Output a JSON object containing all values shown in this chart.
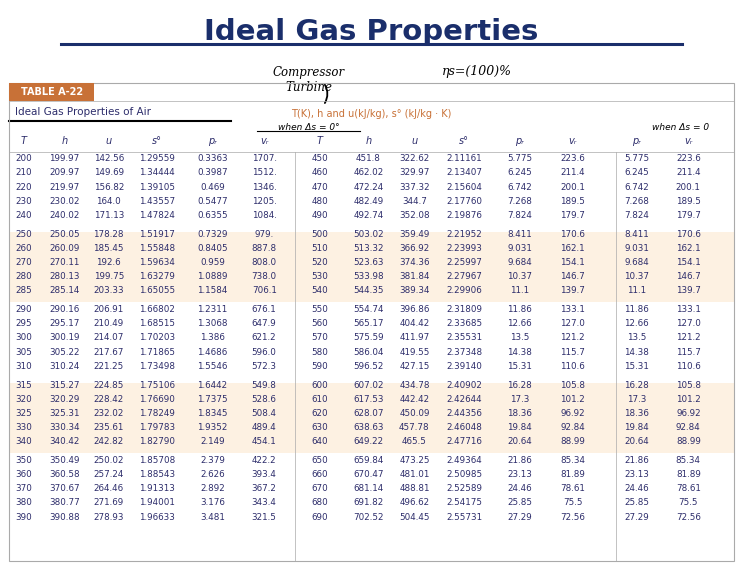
{
  "title": "Ideal Gas Properties",
  "table_label": "TABLE A-22",
  "table_subtitle": "Ideal Gas Properties of Air",
  "col_header_orange": "T(K), h and u(kJ/kg), s° (kJ/kg · K)",
  "col_header_left": "when Δs = 0°",
  "col_header_right": "when Δs = 0",
  "handwritten_left": "Compressor\nTurbine",
  "handwritten_right": "ηs=(100)%",
  "title_color": "#1a2e6b",
  "text_color": "#2d2d6b",
  "header_bg": "#c87137",
  "stripe_color": "#fde8d0",
  "rows": [
    [
      200,
      199.97,
      142.56,
      1.29559,
      0.3363,
      "1707.",
      450,
      451.8,
      322.62,
      2.11161,
      5.775,
      223.6
    ],
    [
      210,
      209.97,
      149.69,
      1.34444,
      0.3987,
      "1512.",
      460,
      462.02,
      329.97,
      2.13407,
      6.245,
      211.4
    ],
    [
      220,
      219.97,
      156.82,
      1.39105,
      0.469,
      "1346.",
      470,
      472.24,
      337.32,
      2.15604,
      6.742,
      200.1
    ],
    [
      230,
      230.02,
      164.0,
      1.43557,
      0.5477,
      "1205.",
      480,
      482.49,
      344.7,
      2.1776,
      7.268,
      189.5
    ],
    [
      240,
      240.02,
      171.13,
      1.47824,
      0.6355,
      "1084.",
      490,
      492.74,
      352.08,
      2.19876,
      7.824,
      179.7
    ],
    [
      null,
      null,
      null,
      null,
      null,
      null,
      null,
      null,
      null,
      null,
      null,
      null
    ],
    [
      250,
      250.05,
      178.28,
      1.51917,
      0.7329,
      "979.",
      500,
      503.02,
      359.49,
      2.21952,
      8.411,
      170.6
    ],
    [
      260,
      260.09,
      185.45,
      1.55848,
      0.8405,
      887.8,
      510,
      513.32,
      366.92,
      2.23993,
      9.031,
      162.1
    ],
    [
      270,
      270.11,
      192.6,
      1.59634,
      0.959,
      808.0,
      520,
      523.63,
      374.36,
      2.25997,
      9.684,
      154.1
    ],
    [
      280,
      280.13,
      199.75,
      1.63279,
      1.0889,
      738.0,
      530,
      533.98,
      381.84,
      2.27967,
      10.37,
      146.7
    ],
    [
      285,
      285.14,
      203.33,
      1.65055,
      1.1584,
      706.1,
      540,
      544.35,
      389.34,
      2.29906,
      11.1,
      139.7
    ],
    [
      null,
      null,
      null,
      null,
      null,
      null,
      null,
      null,
      null,
      null,
      null,
      null
    ],
    [
      290,
      290.16,
      206.91,
      1.66802,
      1.2311,
      676.1,
      550,
      554.74,
      396.86,
      2.31809,
      11.86,
      133.1
    ],
    [
      295,
      295.17,
      210.49,
      1.68515,
      1.3068,
      647.9,
      560,
      565.17,
      404.42,
      2.33685,
      12.66,
      127.0
    ],
    [
      300,
      300.19,
      214.07,
      1.70203,
      1.386,
      621.2,
      570,
      575.59,
      411.97,
      2.35531,
      13.5,
      121.2
    ],
    [
      305,
      305.22,
      217.67,
      1.71865,
      1.4686,
      596.0,
      580,
      586.04,
      419.55,
      2.37348,
      14.38,
      115.7
    ],
    [
      310,
      310.24,
      221.25,
      1.73498,
      1.5546,
      572.3,
      590,
      596.52,
      427.15,
      2.3914,
      15.31,
      110.6
    ],
    [
      null,
      null,
      null,
      null,
      null,
      null,
      null,
      null,
      null,
      null,
      null,
      null
    ],
    [
      315,
      315.27,
      224.85,
      1.75106,
      1.6442,
      549.8,
      600,
      607.02,
      434.78,
      2.40902,
      16.28,
      105.8
    ],
    [
      320,
      320.29,
      228.42,
      1.7669,
      1.7375,
      528.6,
      610,
      617.53,
      442.42,
      2.42644,
      17.3,
      101.2
    ],
    [
      325,
      325.31,
      232.02,
      1.78249,
      1.8345,
      508.4,
      620,
      628.07,
      450.09,
      2.44356,
      18.36,
      96.92
    ],
    [
      330,
      330.34,
      235.61,
      1.79783,
      1.9352,
      489.4,
      630,
      638.63,
      457.78,
      2.46048,
      19.84,
      92.84
    ],
    [
      340,
      340.42,
      242.82,
      1.8279,
      2.149,
      454.1,
      640,
      649.22,
      465.5,
      2.47716,
      20.64,
      88.99
    ],
    [
      null,
      null,
      null,
      null,
      null,
      null,
      null,
      null,
      null,
      null,
      null,
      null
    ],
    [
      350,
      350.49,
      250.02,
      1.85708,
      2.379,
      422.2,
      650,
      659.84,
      473.25,
      2.49364,
      21.86,
      85.34
    ],
    [
      360,
      360.58,
      257.24,
      1.88543,
      2.626,
      393.4,
      660,
      670.47,
      481.01,
      2.50985,
      23.13,
      81.89
    ],
    [
      370,
      370.67,
      264.46,
      1.91313,
      2.892,
      367.2,
      670,
      681.14,
      488.81,
      2.52589,
      24.46,
      78.61
    ],
    [
      380,
      380.77,
      271.69,
      1.94001,
      3.176,
      343.4,
      680,
      691.82,
      496.62,
      2.54175,
      25.85,
      75.5
    ],
    [
      390,
      390.88,
      278.93,
      1.96633,
      3.481,
      321.5,
      690,
      702.52,
      504.45,
      2.55731,
      27.29,
      72.56
    ]
  ]
}
